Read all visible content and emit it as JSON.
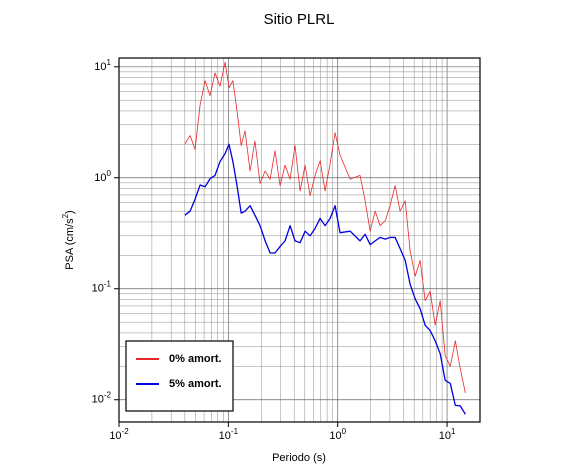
{
  "chart_data": {
    "type": "line",
    "title": "Sitio PLRL",
    "xlabel": "Periodo (s)",
    "ylabel": {
      "text": "PSA (cm/s",
      "sup": "2",
      "tail": ")"
    },
    "log_x": true,
    "log_y": true,
    "grid": true,
    "minor_grid": true,
    "legend_loc": "lower left",
    "xlim": [
      0.01,
      20
    ],
    "ylim": [
      0.0063,
      12
    ],
    "xticks": [
      {
        "value": 0.01,
        "label": "10",
        "sup": "-2"
      },
      {
        "value": 0.1,
        "label": "10",
        "sup": "-1"
      },
      {
        "value": 1,
        "label": "10",
        "sup": "0"
      },
      {
        "value": 10,
        "label": "10",
        "sup": "1"
      }
    ],
    "yticks": [
      {
        "value": 0.01,
        "label": "10",
        "sup": "-2"
      },
      {
        "value": 0.1,
        "label": "10",
        "sup": "-1"
      },
      {
        "value": 1,
        "label": "10",
        "sup": "0"
      },
      {
        "value": 10,
        "label": "10",
        "sup": "1"
      }
    ],
    "x": [
      0.04,
      0.0447,
      0.0496,
      0.0551,
      0.0612,
      0.068,
      0.0755,
      0.0839,
      0.0933,
      0.1014,
      0.11,
      0.12,
      0.131,
      0.142,
      0.158,
      0.175,
      0.195,
      0.217,
      0.241,
      0.267,
      0.297,
      0.33,
      0.367,
      0.407,
      0.453,
      0.503,
      0.559,
      0.621,
      0.69,
      0.767,
      0.851,
      0.946,
      1.05,
      1.3,
      1.6,
      1.78,
      1.98,
      2.2,
      2.44,
      2.72,
      3.01,
      3.35,
      3.72,
      4.14,
      4.59,
      5.11,
      5.67,
      6.3,
      7.0,
      7.78,
      8.65,
      9.6,
      10.7,
      11.9,
      13.2,
      14.7
    ],
    "series": [
      {
        "name": "0% amort.",
        "color": "#e8282a",
        "width": 0.8,
        "values": [
          2.02,
          2.4,
          1.8,
          4.5,
          7.5,
          5.5,
          8.8,
          6.7,
          11,
          6.5,
          7.5,
          4.0,
          1.95,
          2.65,
          1.15,
          2.15,
          0.89,
          1.15,
          0.97,
          1.75,
          0.85,
          1.3,
          0.97,
          1.95,
          0.76,
          1.3,
          0.69,
          1.05,
          1.42,
          0.76,
          1.33,
          2.55,
          1.6,
          0.97,
          1.05,
          0.62,
          0.33,
          0.5,
          0.37,
          0.41,
          0.56,
          0.85,
          0.5,
          0.62,
          0.22,
          0.13,
          0.18,
          0.078,
          0.095,
          0.047,
          0.078,
          0.025,
          0.02,
          0.034,
          0.019,
          0.0115
        ]
      },
      {
        "name": "5% amort.",
        "color": "#0000e0",
        "width": 1.3,
        "values": [
          0.46,
          0.5,
          0.64,
          0.86,
          0.83,
          0.98,
          1.05,
          1.4,
          1.65,
          2.0,
          1.4,
          0.85,
          0.48,
          0.5,
          0.56,
          0.46,
          0.37,
          0.27,
          0.21,
          0.21,
          0.24,
          0.27,
          0.37,
          0.27,
          0.26,
          0.33,
          0.3,
          0.35,
          0.43,
          0.37,
          0.43,
          0.56,
          0.32,
          0.33,
          0.27,
          0.31,
          0.25,
          0.27,
          0.29,
          0.28,
          0.29,
          0.29,
          0.23,
          0.18,
          0.11,
          0.081,
          0.066,
          0.047,
          0.042,
          0.034,
          0.026,
          0.015,
          0.014,
          0.0089,
          0.0088,
          0.0074
        ]
      }
    ]
  }
}
